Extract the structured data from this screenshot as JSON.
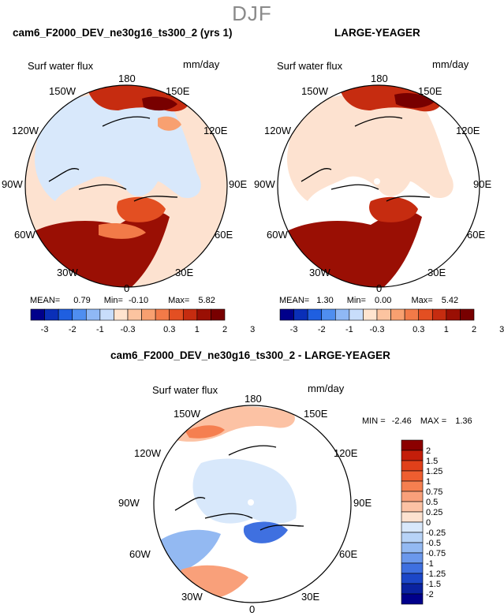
{
  "season_title": "DJF",
  "panels": [
    {
      "id": "left",
      "title": "cam6_F2000_DEV_ne30g16_ts300_2 (yrs 1)",
      "variable": "Surf water flux",
      "units": "mm/day",
      "lon_labels": [
        "180",
        "150E",
        "120E",
        "90E",
        "60E",
        "30E",
        "0",
        "30W",
        "60W",
        "90W",
        "120W",
        "150W"
      ],
      "stats": {
        "mean_label": "MEAN=",
        "mean": "0.79",
        "min_label": "Min=",
        "min": "-0.10",
        "max_label": "Max=",
        "max": "5.82"
      }
    },
    {
      "id": "right",
      "title": "LARGE-YEAGER",
      "variable": "Surf water flux",
      "units": "mm/day",
      "lon_labels": [
        "180",
        "150E",
        "120E",
        "90E",
        "60E",
        "30E",
        "0",
        "30W",
        "60W",
        "90W",
        "120W",
        "150W"
      ],
      "stats": {
        "mean_label": "MEAN=",
        "mean": "1.30",
        "min_label": "Min=",
        "min": "0.00",
        "max_label": "Max=",
        "max": "5.42"
      }
    },
    {
      "id": "diff",
      "title": "cam6_F2000_DEV_ne30g16_ts300_2 - LARGE-YEAGER",
      "variable": "Surf water flux",
      "units": "mm/day",
      "lon_labels": [
        "180",
        "150E",
        "120E",
        "90E",
        "60E",
        "30E",
        "0",
        "30W",
        "60W",
        "90W",
        "120W",
        "150W"
      ],
      "stats": {
        "min_label": "MIN =",
        "min": "-2.46",
        "max_label": "MAX =",
        "max": "1.36"
      }
    }
  ],
  "colorbar_top": {
    "labels": [
      "-3",
      "-2",
      "-1",
      "-0.3",
      "0.3",
      "1",
      "2",
      "3"
    ],
    "colors": [
      "#00008b",
      "#0a2fb8",
      "#1f5fe0",
      "#4f8ef0",
      "#8fb8f5",
      "#c8ddfb",
      "#ffe4cf",
      "#fcc4a0",
      "#f8a070",
      "#f27a48",
      "#e34f22",
      "#c62c10",
      "#9a0f04",
      "#780000"
    ]
  },
  "colorbar_diff": {
    "labels": [
      "2",
      "1.5",
      "1.25",
      "1",
      "0.75",
      "0.5",
      "0.25",
      "0",
      "-0.25",
      "-0.5",
      "-0.75",
      "-1",
      "-1.25",
      "-1.5",
      "-2"
    ],
    "colors": [
      "#8b0000",
      "#c41e0a",
      "#e0401a",
      "#ee5e30",
      "#f57f50",
      "#f9a07a",
      "#fcc2a4",
      "#fde2d0",
      "#d8e8fb",
      "#b7d3f7",
      "#93b9f2",
      "#6b98ec",
      "#3f70e0",
      "#1c47c8",
      "#0a22a0",
      "#00008b"
    ]
  },
  "map_colors": {
    "ocean_neutral_left": "#fde2d0",
    "land_left": "#d8e8fb",
    "ocean_neutral_right": "#fde2d0",
    "land_right": "#ffffff",
    "diff_base": "#ffffff",
    "diff_land": "#d8e8fb"
  }
}
